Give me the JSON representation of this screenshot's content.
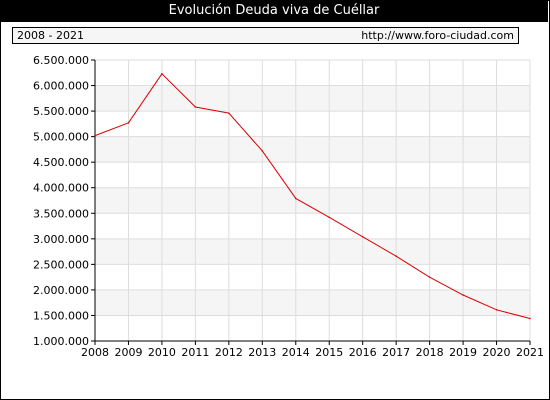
{
  "header": {
    "title": "Evolución Deuda viva de Cuéllar",
    "period": "2008 - 2021",
    "source": "http://www.foro-ciudad.com"
  },
  "colors": {
    "line": "#dd0000",
    "band": "#f5f5f5",
    "grid": "#dddddd",
    "title_bg": "#000000",
    "title_text": "#ffffff"
  },
  "chart_data": {
    "type": "line",
    "x": [
      2008,
      2009,
      2010,
      2011,
      2012,
      2013,
      2014,
      2015,
      2016,
      2017,
      2018,
      2019,
      2020,
      2021
    ],
    "series": [
      {
        "values": [
          5020000,
          5270000,
          6230000,
          5580000,
          5460000,
          4720000,
          3790000,
          3420000,
          3040000,
          2660000,
          2250000,
          1900000,
          1610000,
          1440000
        ]
      }
    ],
    "ylim": [
      1000000,
      6500000
    ],
    "y_ticks": [
      1000000,
      1500000,
      2000000,
      2500000,
      3000000,
      3500000,
      4000000,
      4500000,
      5000000,
      5500000,
      6000000,
      6500000
    ],
    "y_tick_labels": [
      "1.000.000",
      "1.500.000",
      "2.000.000",
      "2.500.000",
      "3.000.000",
      "3.500.000",
      "4.000.000",
      "4.500.000",
      "5.000.000",
      "5.500.000",
      "6.000.000",
      "6.500.000"
    ],
    "x_tick_labels": [
      "2008",
      "2009",
      "2010",
      "2011",
      "2012",
      "2013",
      "2014",
      "2015",
      "2016",
      "2017",
      "2018",
      "2019",
      "2020",
      "2021"
    ],
    "grid": true,
    "alternating_bands": true,
    "xlabel": "",
    "ylabel": ""
  }
}
